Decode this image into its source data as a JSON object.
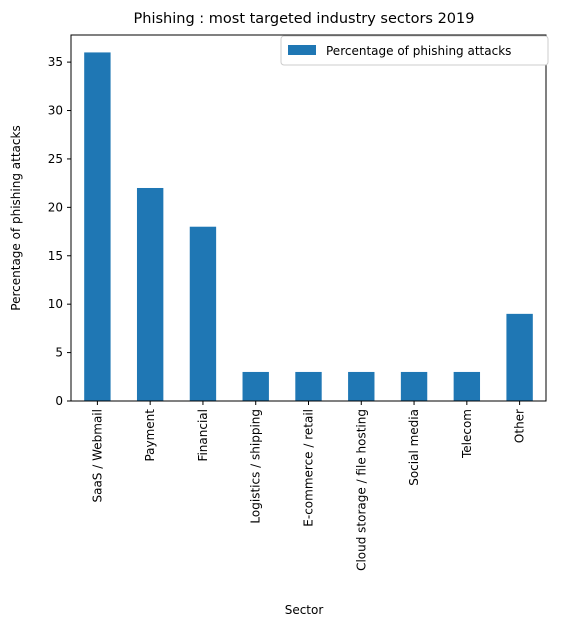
{
  "chart_data": {
    "type": "bar",
    "title": "Phishing : most targeted industry sectors 2019",
    "xlabel": "Sector",
    "ylabel": "Percentage of phishing attacks",
    "categories": [
      "SaaS / Webmail",
      "Payment",
      "Financial",
      "Logistics / shipping",
      "E-commerce / retail",
      "Cloud storage / file hosting",
      "Social media",
      "Telecom",
      "Other"
    ],
    "series": [
      {
        "name": "Percentage of phishing attacks",
        "values": [
          36,
          22,
          18,
          3,
          3,
          3,
          3,
          3,
          9
        ],
        "color": "#1f77b4"
      }
    ],
    "ylim": [
      0,
      37.8
    ],
    "yticks": [
      0,
      5,
      10,
      15,
      20,
      25,
      30,
      35
    ],
    "grid": false,
    "legend_position": "top-right"
  }
}
